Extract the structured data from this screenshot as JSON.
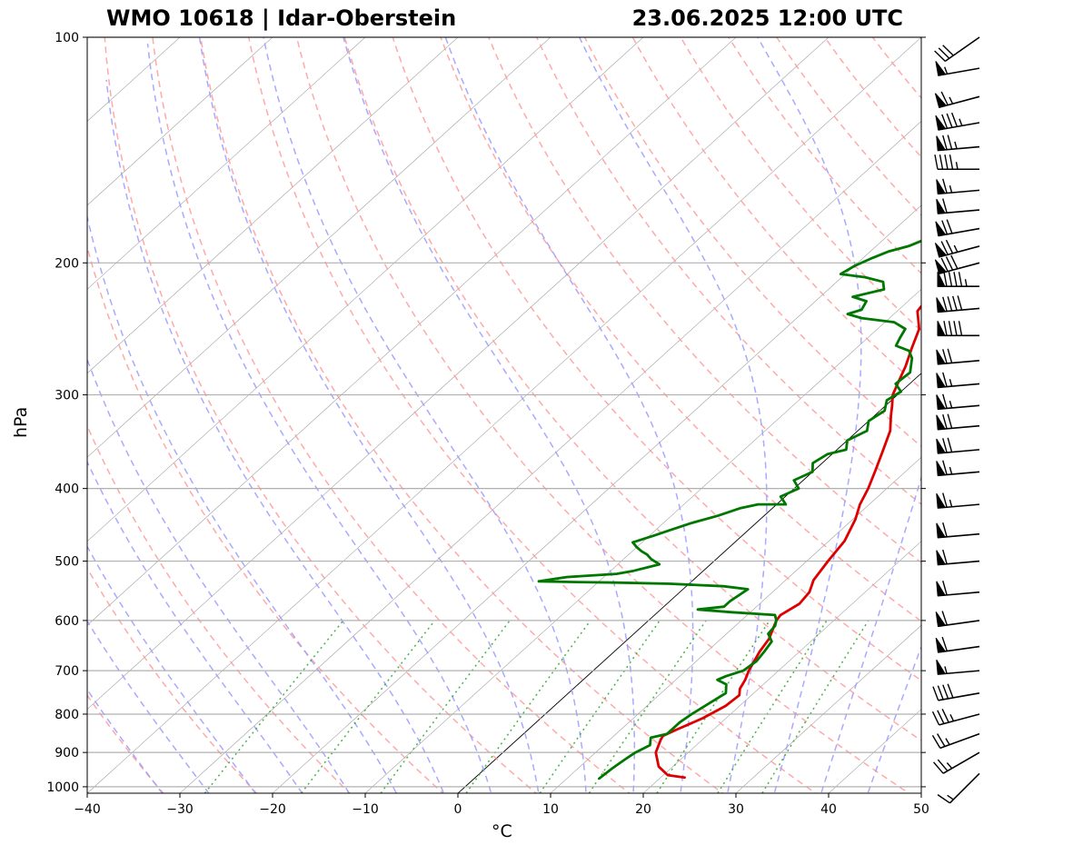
{
  "header": {
    "station": "WMO 10618 | Idar-Oberstein",
    "datetime": "23.06.2025 12:00 UTC"
  },
  "chart_data": {
    "type": "line",
    "title": "WMO 10618 | Idar-Oberstein",
    "subtitle": "23.06.2025 12:00 UTC",
    "xlabel": "°C",
    "ylabel": "hPa",
    "xlim": [
      -40,
      50
    ],
    "ylim": [
      1020,
      100
    ],
    "y_scale": "log",
    "x_ticks": [
      -40,
      -30,
      -20,
      -10,
      0,
      10,
      20,
      30,
      40,
      50
    ],
    "y_ticks": [
      100,
      200,
      300,
      400,
      500,
      600,
      700,
      800,
      900,
      1000
    ],
    "grid": true,
    "colors": {
      "temperature": "#dd0000",
      "dewpoint": "#007700",
      "dry_adiabats": "#ff9a9a",
      "moist_adiabats": "#9a9aff",
      "mixing_ratio": "#33aa33",
      "isotherms": "#888888",
      "zero_isotherm": "#000000"
    },
    "series": [
      {
        "key": "temperature",
        "points": [
          [
            22.6,
            972
          ],
          [
            20.5,
            965
          ],
          [
            18.5,
            940
          ],
          [
            16.5,
            900
          ],
          [
            15.5,
            865
          ],
          [
            15.3,
            855
          ],
          [
            16,
            840
          ],
          [
            17.5,
            810
          ],
          [
            18.5,
            780
          ],
          [
            18.7,
            755
          ],
          [
            18,
            740
          ],
          [
            17.5,
            720
          ],
          [
            16.8,
            700
          ],
          [
            15.7,
            660
          ],
          [
            15.2,
            635
          ],
          [
            14.2,
            610
          ],
          [
            13.8,
            600
          ],
          [
            13.6,
            590
          ],
          [
            14.3,
            570
          ],
          [
            14,
            550
          ],
          [
            13,
            530
          ],
          [
            12.3,
            500
          ],
          [
            11.7,
            470
          ],
          [
            10.3,
            440
          ],
          [
            9,
            420
          ],
          [
            8,
            400
          ],
          [
            6.6,
            378
          ],
          [
            5,
            355
          ],
          [
            3.5,
            335
          ],
          [
            1.8,
            320
          ],
          [
            0.7,
            310
          ],
          [
            -0.5,
            300
          ],
          [
            -1.3,
            290
          ],
          [
            -2.5,
            275
          ],
          [
            -4,
            260
          ],
          [
            -5.5,
            245
          ],
          [
            -7.8,
            232
          ],
          [
            -8,
            228
          ],
          [
            -6.5,
            225
          ],
          [
            -4,
            221
          ],
          [
            -2.5,
            218
          ],
          [
            -1.5,
            213
          ],
          [
            -0.5,
            205
          ],
          [
            1.5,
            200
          ],
          [
            2.5,
            198
          ],
          [
            3,
            196
          ],
          [
            3,
            190
          ],
          [
            3,
            185
          ],
          [
            2.5,
            176
          ],
          [
            3.2,
            172
          ],
          [
            5,
            168
          ],
          [
            7,
            163
          ],
          [
            8.5,
            158
          ],
          [
            10.5,
            154
          ],
          [
            12,
            147
          ],
          [
            13.5,
            143
          ],
          [
            15,
            138
          ],
          [
            16,
            131
          ],
          [
            18,
            128
          ],
          [
            19.5,
            125
          ],
          [
            21.5,
            121
          ],
          [
            22,
            117
          ],
          [
            23.5,
            114
          ],
          [
            23.8,
            110
          ],
          [
            24.5,
            107
          ],
          [
            25.2,
            104
          ],
          [
            26,
            101
          ]
        ]
      },
      {
        "key": "dewpoint",
        "points": [
          [
            13.5,
            975
          ],
          [
            13.7,
            945
          ],
          [
            14,
            920
          ],
          [
            14.3,
            900
          ],
          [
            15,
            880
          ],
          [
            14.2,
            860
          ],
          [
            15.5,
            850
          ],
          [
            15.5,
            820
          ],
          [
            15.8,
            800
          ],
          [
            16.5,
            770
          ],
          [
            17,
            750
          ],
          [
            16,
            730
          ],
          [
            14.5,
            720
          ],
          [
            15,
            712
          ],
          [
            16.2,
            700
          ],
          [
            16.5,
            680
          ],
          [
            16.2,
            660
          ],
          [
            15.8,
            640
          ],
          [
            14.5,
            625
          ],
          [
            14.3,
            610
          ],
          [
            13.8,
            600
          ],
          [
            13,
            590
          ],
          [
            8,
            585
          ],
          [
            4,
            580
          ],
          [
            6.5,
            575
          ],
          [
            6.5,
            565
          ],
          [
            7,
            545
          ],
          [
            4,
            540
          ],
          [
            -2,
            536
          ],
          [
            -8,
            534
          ],
          [
            -13,
            533
          ],
          [
            -16.5,
            532
          ],
          [
            -14,
            525
          ],
          [
            -9,
            520
          ],
          [
            -7.5,
            515
          ],
          [
            -5.5,
            505
          ],
          [
            -7,
            497
          ],
          [
            -8,
            490
          ],
          [
            -9,
            485
          ],
          [
            -10,
            479
          ],
          [
            -11,
            472
          ],
          [
            -9.5,
            462
          ],
          [
            -8.5,
            455
          ],
          [
            -7,
            445
          ],
          [
            -5,
            435
          ],
          [
            -3.5,
            425
          ],
          [
            -2,
            420
          ],
          [
            1,
            420
          ],
          [
            -0.5,
            410
          ],
          [
            0.5,
            400
          ],
          [
            -1,
            390
          ],
          [
            0,
            380
          ],
          [
            -1,
            370
          ],
          [
            -0.5,
            360
          ],
          [
            1,
            355
          ],
          [
            0,
            345
          ],
          [
            1,
            335
          ],
          [
            0,
            325
          ],
          [
            0.5,
            315
          ],
          [
            -0.5,
            305
          ],
          [
            0,
            297
          ],
          [
            -1.5,
            290
          ],
          [
            -1.3,
            280
          ],
          [
            -2.8,
            268
          ],
          [
            -4,
            262
          ],
          [
            -6,
            258
          ],
          [
            -6.5,
            252
          ],
          [
            -7,
            245
          ],
          [
            -9,
            240
          ],
          [
            -13,
            237
          ],
          [
            -15,
            234
          ],
          [
            -14,
            231
          ],
          [
            -14.5,
            225
          ],
          [
            -16.5,
            222
          ],
          [
            -14,
            217
          ],
          [
            -15,
            212
          ],
          [
            -17.5,
            209
          ],
          [
            -20.5,
            207
          ],
          [
            -20,
            202
          ],
          [
            -19,
            197
          ],
          [
            -18,
            193
          ],
          [
            -16.5,
            190
          ],
          [
            -15.5,
            186
          ],
          [
            -15.5,
            180
          ],
          [
            -15,
            175
          ],
          [
            -14.5,
            172
          ],
          [
            -14,
            167
          ],
          [
            -13.5,
            162
          ],
          [
            -14,
            158
          ],
          [
            -13.5,
            153
          ],
          [
            -14.5,
            150
          ],
          [
            -14.5,
            145
          ],
          [
            -13.5,
            140
          ],
          [
            -12.5,
            136
          ],
          [
            -11,
            132
          ],
          [
            -9,
            129
          ],
          [
            -8.5,
            125
          ],
          [
            -7,
            121
          ],
          [
            -6,
            118
          ],
          [
            -5,
            115
          ],
          [
            -4.5,
            110
          ],
          [
            -3,
            105
          ],
          [
            -1.6,
            100
          ]
        ]
      }
    ],
    "dry_adiabat_thetas_K": [
      210,
      220,
      230,
      240,
      250,
      260,
      270,
      280,
      290,
      300,
      310,
      320,
      330,
      340,
      350,
      360,
      370,
      380,
      390,
      400,
      410,
      420,
      430,
      440,
      450,
      460,
      470,
      480
    ],
    "moist_adiabat_start_temps_C": [
      -30,
      -25,
      -20,
      -15,
      -10,
      -5,
      0,
      5,
      10,
      15,
      20,
      25,
      30,
      35,
      40,
      45
    ],
    "mixing_ratio_g_per_kg": [
      0.4,
      1,
      2,
      4,
      7,
      10,
      16,
      24,
      32
    ],
    "wind_barbs": [
      {
        "p": 100,
        "dir": 235,
        "kt": 30
      },
      {
        "p": 110,
        "dir": 260,
        "kt": 55
      },
      {
        "p": 120,
        "dir": 255,
        "kt": 65
      },
      {
        "p": 130,
        "dir": 260,
        "kt": 85
      },
      {
        "p": 140,
        "dir": 265,
        "kt": 75
      },
      {
        "p": 150,
        "dir": 270,
        "kt": 45
      },
      {
        "p": 160,
        "dir": 265,
        "kt": 65
      },
      {
        "p": 170,
        "dir": 265,
        "kt": 60
      },
      {
        "p": 180,
        "dir": 260,
        "kt": 70
      },
      {
        "p": 190,
        "dir": 255,
        "kt": 75
      },
      {
        "p": 200,
        "dir": 255,
        "kt": 80
      },
      {
        "p": 215,
        "dir": 270,
        "kt": 95
      },
      {
        "p": 230,
        "dir": 265,
        "kt": 90
      },
      {
        "p": 250,
        "dir": 270,
        "kt": 90
      },
      {
        "p": 270,
        "dir": 265,
        "kt": 70
      },
      {
        "p": 290,
        "dir": 265,
        "kt": 65
      },
      {
        "p": 310,
        "dir": 265,
        "kt": 65
      },
      {
        "p": 330,
        "dir": 265,
        "kt": 70
      },
      {
        "p": 355,
        "dir": 265,
        "kt": 70
      },
      {
        "p": 380,
        "dir": 265,
        "kt": 65
      },
      {
        "p": 420,
        "dir": 265,
        "kt": 65
      },
      {
        "p": 460,
        "dir": 265,
        "kt": 60
      },
      {
        "p": 500,
        "dir": 265,
        "kt": 60
      },
      {
        "p": 550,
        "dir": 265,
        "kt": 60
      },
      {
        "p": 600,
        "dir": 262,
        "kt": 60
      },
      {
        "p": 650,
        "dir": 262,
        "kt": 60
      },
      {
        "p": 700,
        "dir": 265,
        "kt": 55
      },
      {
        "p": 750,
        "dir": 260,
        "kt": 40
      },
      {
        "p": 800,
        "dir": 255,
        "kt": 35
      },
      {
        "p": 850,
        "dir": 250,
        "kt": 25
      },
      {
        "p": 900,
        "dir": 240,
        "kt": 25
      },
      {
        "p": 960,
        "dir": 225,
        "kt": 15
      }
    ]
  }
}
